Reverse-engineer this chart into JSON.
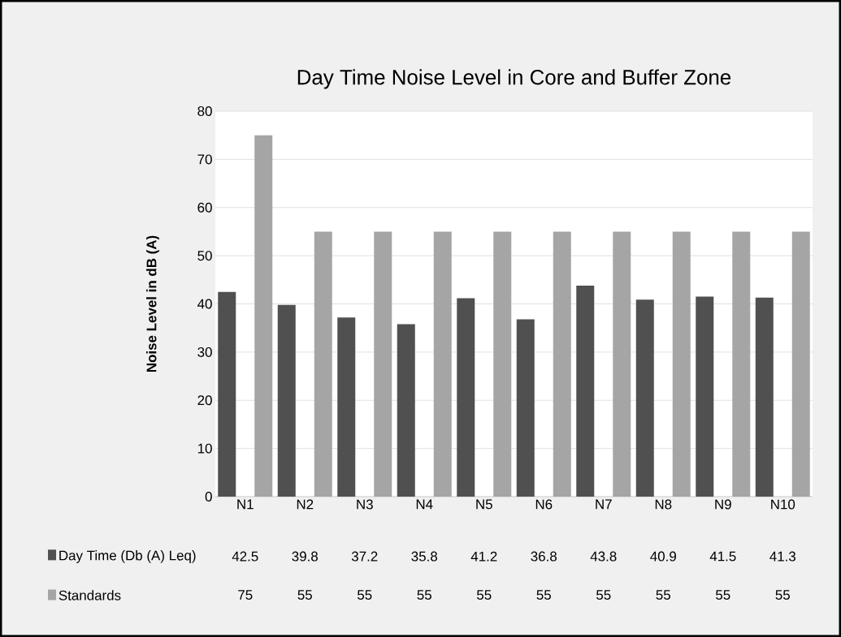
{
  "chart_data": {
    "type": "bar",
    "title": "Day Time Noise Level in Core and Buffer Zone",
    "ylabel": "Noise Level in dB (A)",
    "categories": [
      "N1",
      "N2",
      "N3",
      "N4",
      "N5",
      "N6",
      "N7",
      "N8",
      "N9",
      "N10"
    ],
    "series": [
      {
        "name": "Day Time (Db (A) Leq)",
        "color": "#505050",
        "values": [
          42.5,
          39.8,
          37.2,
          35.8,
          41.2,
          36.8,
          43.8,
          40.9,
          41.5,
          41.3
        ]
      },
      {
        "name": "Standards",
        "color": "#a5a5a5",
        "values": [
          75,
          55,
          55,
          55,
          55,
          55,
          55,
          55,
          55,
          55
        ]
      }
    ],
    "ylim": [
      0,
      80
    ],
    "yticks": [
      0,
      10,
      20,
      30,
      40,
      50,
      60,
      70,
      80
    ],
    "grid": "y",
    "legend": "bottom",
    "data_labels": true
  }
}
